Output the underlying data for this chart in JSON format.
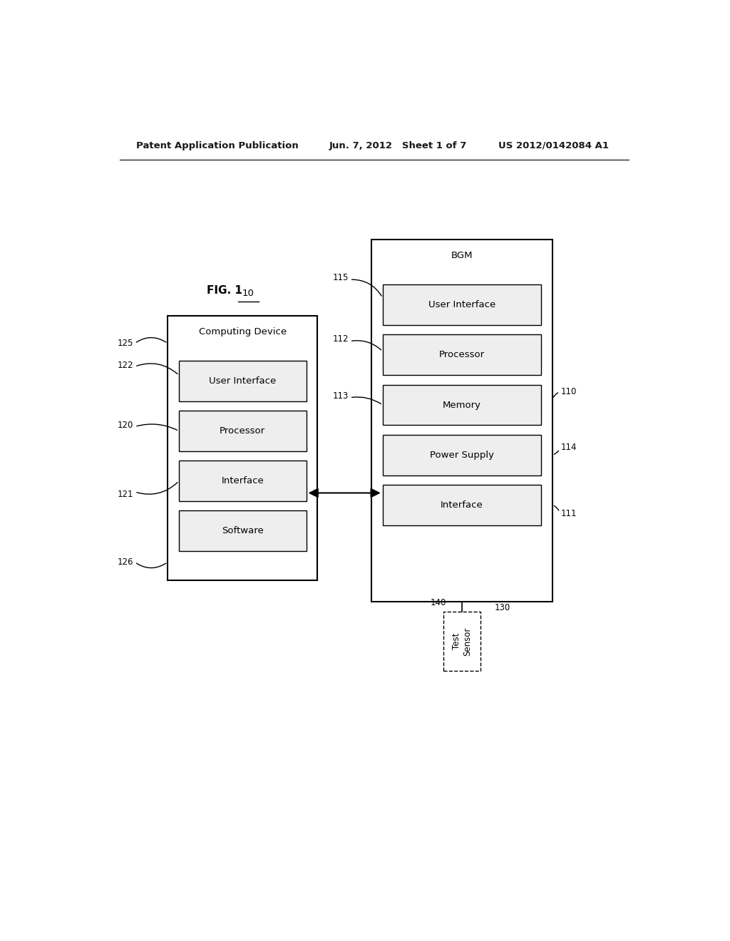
{
  "bg_color": "#ffffff",
  "header_text_left": "Patent Application Publication",
  "header_text_mid": "Jun. 7, 2012   Sheet 1 of 7",
  "header_text_right": "US 2012/0142084 A1",
  "fig_label": "FIG. 1",
  "cd_title": "Computing Device",
  "bgm_title": "BGM",
  "cd_components": [
    "User Interface",
    "Processor",
    "Interface",
    "Software"
  ],
  "bgm_components": [
    "User Interface",
    "Processor",
    "Memory",
    "Power Supply",
    "Interface"
  ],
  "test_sensor_label": "Test\nSensor",
  "label_130": "130",
  "label_140": "140",
  "label_10": "10",
  "ref_labels_left": [
    "125",
    "122",
    "120",
    "121",
    "126"
  ],
  "ref_labels_bgm_left": [
    "115",
    "112",
    "113"
  ],
  "ref_labels_bgm_right": [
    "110",
    "114",
    "111"
  ]
}
